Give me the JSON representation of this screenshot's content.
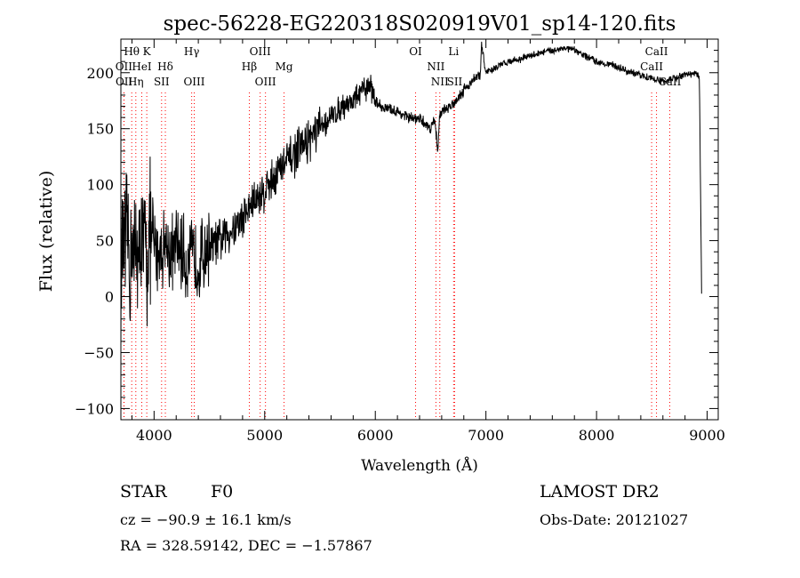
{
  "chart_data": {
    "type": "line",
    "title": "spec-56228-EG220318S020919V01_sp14-120.fits",
    "xlabel": "Wavelength (Å)",
    "ylabel": "Flux (relative)",
    "xlim": [
      3700,
      9100
    ],
    "ylim": [
      -110,
      230
    ],
    "xticks": [
      4000,
      5000,
      6000,
      7000,
      8000,
      9000
    ],
    "yticks": [
      -100,
      -50,
      0,
      50,
      100,
      150,
      200
    ],
    "grid": false,
    "line_color": "#000000",
    "marker_color": "#ff0000",
    "series": [
      {
        "x": [
          3700,
          3720,
          3740,
          3760,
          3780,
          3800,
          3820,
          3840,
          3860,
          3880,
          3900,
          3920,
          3940,
          3960,
          3980,
          4000,
          4050,
          4100,
          4150,
          4200,
          4250,
          4300,
          4350,
          4400,
          4450,
          4500,
          4600,
          4700,
          4800,
          4900,
          5000,
          5100,
          5200,
          5300,
          5400,
          5500,
          5600,
          5700,
          5800,
          5850,
          5900,
          5950,
          6000,
          6050,
          6100,
          6200,
          6300,
          6400,
          6450,
          6500,
          6540,
          6563,
          6580,
          6600,
          6650,
          6700,
          6750,
          6800,
          6850,
          6900,
          6950,
          6960,
          7000,
          7100,
          7200,
          7300,
          7400,
          7500,
          7600,
          7700,
          7800,
          7900,
          8000,
          8100,
          8200,
          8300,
          8400,
          8500,
          8600,
          8700,
          8800,
          8900,
          8930,
          8950
        ],
        "y": [
          10,
          50,
          30,
          60,
          20,
          55,
          25,
          60,
          15,
          60,
          35,
          55,
          30,
          60,
          40,
          45,
          40,
          50,
          35,
          45,
          40,
          30,
          35,
          30,
          40,
          45,
          50,
          60,
          70,
          85,
          95,
          110,
          120,
          130,
          140,
          150,
          160,
          170,
          175,
          180,
          185,
          190,
          175,
          170,
          168,
          165,
          160,
          158,
          155,
          150,
          160,
          128,
          160,
          165,
          168,
          172,
          178,
          185,
          190,
          195,
          198,
          225,
          200,
          205,
          210,
          212,
          215,
          218,
          220,
          222,
          220,
          215,
          210,
          208,
          205,
          200,
          198,
          195,
          192,
          195,
          198,
          200,
          195,
          2
        ]
      }
    ],
    "lines": [
      {
        "label": "Hθ",
        "x": 3798,
        "row": 0
      },
      {
        "label": "K",
        "x": 3934,
        "row": 0
      },
      {
        "label": "Hγ",
        "x": 4340,
        "row": 0
      },
      {
        "label": "OIII",
        "x": 4959,
        "row": 0
      },
      {
        "label": "OI",
        "x": 6364,
        "row": 0
      },
      {
        "label": "Li",
        "x": 6708,
        "row": 0
      },
      {
        "label": "CaII",
        "x": 8542,
        "row": 0
      },
      {
        "label": "OII",
        "x": 3727,
        "row": 1
      },
      {
        "label": "HeI",
        "x": 3889,
        "row": 1
      },
      {
        "label": "Hδ",
        "x": 4102,
        "row": 1
      },
      {
        "label": "Hβ",
        "x": 4861,
        "row": 1
      },
      {
        "label": "Mg",
        "x": 5175,
        "row": 1
      },
      {
        "label": "NII",
        "x": 6548,
        "row": 1
      },
      {
        "label": "CaII",
        "x": 8498,
        "row": 1
      },
      {
        "label": "OII",
        "x": 3729,
        "row": 2
      },
      {
        "label": "Hη",
        "x": 3835,
        "row": 2
      },
      {
        "label": "SII",
        "x": 4068,
        "row": 2
      },
      {
        "label": "OIII",
        "x": 4363,
        "row": 2
      },
      {
        "label": "OIII",
        "x": 5007,
        "row": 2
      },
      {
        "label": "NII",
        "x": 6583,
        "row": 2
      },
      {
        "label": "SII",
        "x": 6717,
        "row": 2
      },
      {
        "label": "CaII",
        "x": 8662,
        "row": 2
      }
    ]
  },
  "info": {
    "object_class": "STAR",
    "subclass": "F0",
    "survey": "LAMOST DR2",
    "cz": "cz = −90.9 ± 16.1 km/s",
    "obs_date": "Obs-Date: 20121027",
    "coords": "RA = 328.59142, DEC =  −1.57867"
  }
}
